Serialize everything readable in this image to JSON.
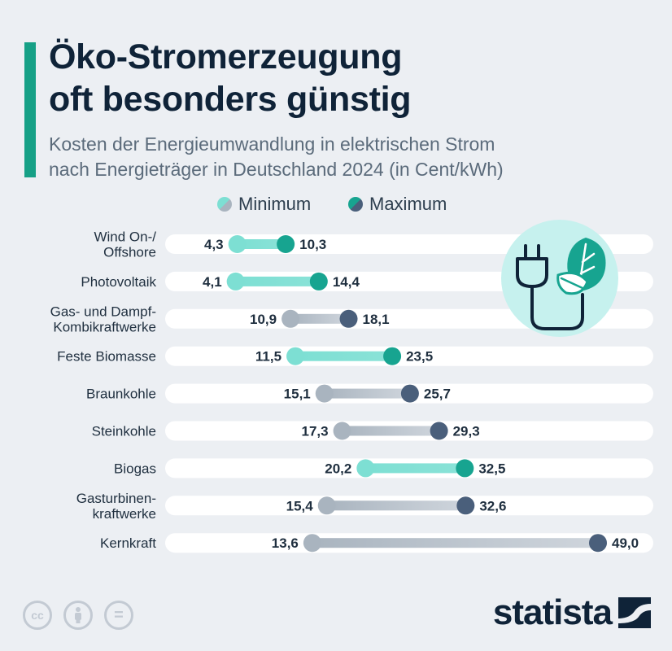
{
  "title_lines": [
    "Öko-Stromerzeugung",
    "oft besonders günstig"
  ],
  "subtitle_lines": [
    "Kosten der Energieumwandlung in elektrischen Strom",
    "nach Energieträger in Deutschland 2024 (in Cent/kWh)"
  ],
  "legend": {
    "min_label": "Minimum",
    "max_label": "Maximum"
  },
  "brand": {
    "logo_text": "statista"
  },
  "footer": {
    "cc": "cc",
    "eq": "="
  },
  "colors": {
    "accent": "#16a086",
    "eco_min": "#7ddfd3",
    "eco_max": "#17a490",
    "conv_min": "#a9b4bf",
    "conv_max": "#4a5f7b",
    "text_dark": "#0f2338",
    "track": "#ffffff"
  },
  "chart_data": {
    "type": "dumbbell",
    "unit": "Cent/kWh",
    "xlim": [
      0,
      49
    ],
    "series": [
      {
        "name": "Minimum"
      },
      {
        "name": "Maximum"
      }
    ],
    "rows": [
      {
        "label_lines": [
          "Wind On-/",
          "Offshore"
        ],
        "min": 4.3,
        "max": 10.3,
        "min_label": "4,3",
        "max_label": "10,3",
        "group": "eco"
      },
      {
        "label_lines": [
          "Photovoltaik"
        ],
        "min": 4.1,
        "max": 14.4,
        "min_label": "4,1",
        "max_label": "14,4",
        "group": "eco"
      },
      {
        "label_lines": [
          "Gas- und Dampf-",
          "Kombikraftwerke"
        ],
        "min": 10.9,
        "max": 18.1,
        "min_label": "10,9",
        "max_label": "18,1",
        "group": "conv"
      },
      {
        "label_lines": [
          "Feste Biomasse"
        ],
        "min": 11.5,
        "max": 23.5,
        "min_label": "11,5",
        "max_label": "23,5",
        "group": "eco"
      },
      {
        "label_lines": [
          "Braunkohle"
        ],
        "min": 15.1,
        "max": 25.7,
        "min_label": "15,1",
        "max_label": "25,7",
        "group": "conv"
      },
      {
        "label_lines": [
          "Steinkohle"
        ],
        "min": 17.3,
        "max": 29.3,
        "min_label": "17,3",
        "max_label": "29,3",
        "group": "conv"
      },
      {
        "label_lines": [
          "Biogas"
        ],
        "min": 20.2,
        "max": 32.5,
        "min_label": "20,2",
        "max_label": "32,5",
        "group": "eco"
      },
      {
        "label_lines": [
          "Gasturbinen-",
          "kraftwerke"
        ],
        "min": 15.4,
        "max": 32.6,
        "min_label": "15,4",
        "max_label": "32,6",
        "group": "conv"
      },
      {
        "label_lines": [
          "Kernkraft"
        ],
        "min": 13.6,
        "max": 49.0,
        "min_label": "13,6",
        "max_label": "49,0",
        "group": "conv"
      }
    ]
  }
}
